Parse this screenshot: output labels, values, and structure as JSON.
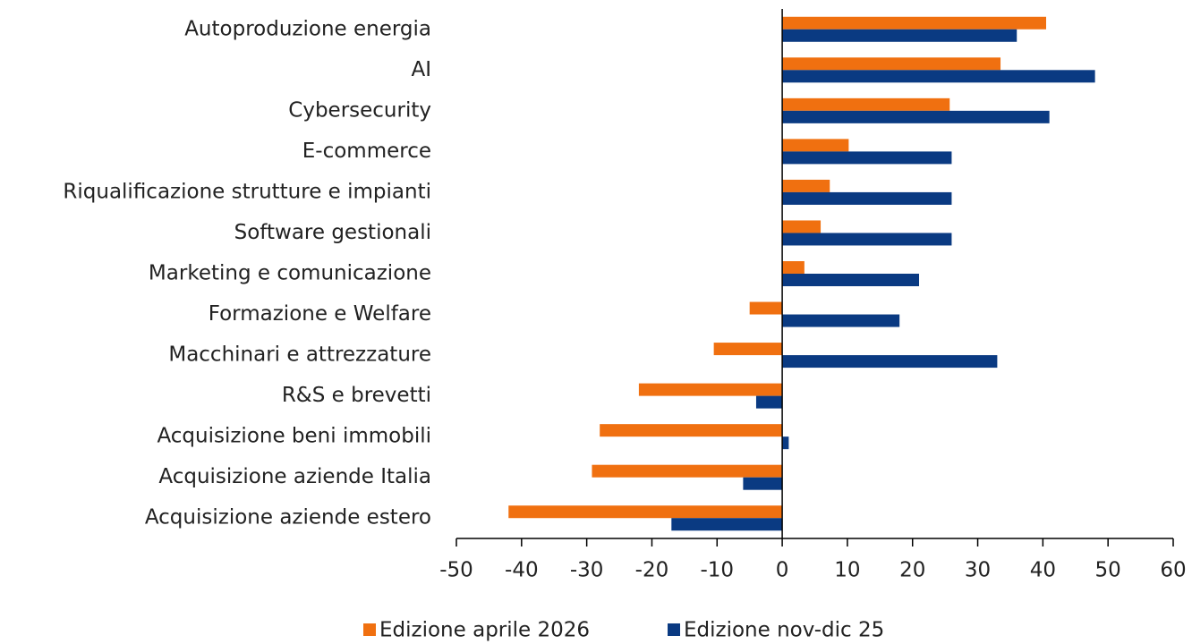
{
  "chart_data": {
    "type": "barh",
    "categories": [
      "Autoproduzione energia",
      "AI",
      "Cybersecurity",
      "E-commerce",
      "Riqualificazione strutture e impianti",
      "Software gestionali",
      "Marketing e comunicazione",
      "Formazione e Welfare",
      "Macchinari e attrezzature",
      "R&S e brevetti",
      "Acquisizione beni immobili",
      "Acquisizione aziende Italia",
      "Acquisizione aziende estero"
    ],
    "series": [
      {
        "name": "Edizione aprile 2026",
        "color": "#f07010",
        "values": [
          40.5,
          33.5,
          25.7,
          10.2,
          7.3,
          5.9,
          3.4,
          -5,
          -10.5,
          -22,
          -28,
          -29.2,
          -42
        ]
      },
      {
        "name": "Edizione nov-dic 25",
        "color": "#0a3a82",
        "values": [
          36,
          48,
          41,
          26,
          26,
          26,
          21,
          18,
          33,
          -4,
          1,
          -6,
          -17
        ]
      }
    ],
    "xlim": [
      -50,
      60
    ],
    "xticks": [
      -50,
      -40,
      -30,
      -20,
      -10,
      0,
      10,
      20,
      30,
      40,
      50,
      60
    ],
    "legend": "bottom"
  }
}
